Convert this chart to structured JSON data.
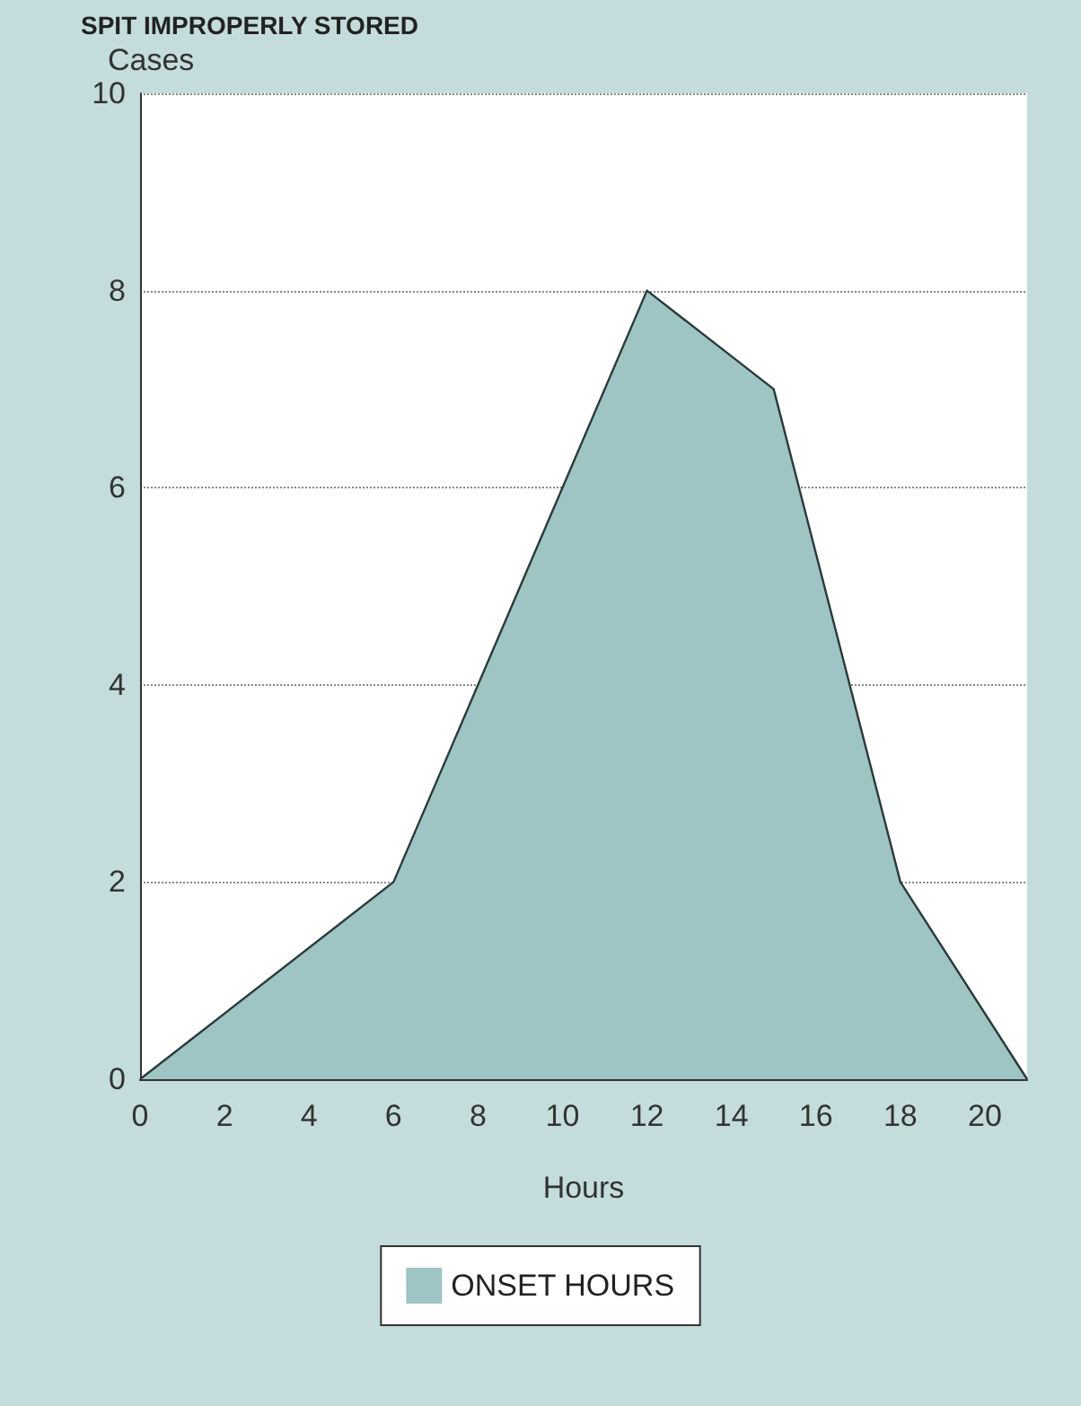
{
  "chart_data": {
    "type": "area",
    "title": "SPIT IMPROPERLY STORED",
    "xlabel": "Hours",
    "ylabel": "Cases",
    "x": [
      0,
      6,
      12,
      15,
      18,
      21
    ],
    "series": [
      {
        "name": "ONSET HOURS",
        "color": "#9fc4c4",
        "values": [
          0,
          2,
          8,
          7,
          2,
          0
        ]
      }
    ],
    "xlim": [
      0,
      21
    ],
    "xticks": [
      0,
      2,
      4,
      6,
      8,
      10,
      12,
      14,
      16,
      18,
      20
    ],
    "ylim": [
      0,
      10
    ],
    "yticks": [
      0,
      2,
      4,
      6,
      8,
      10
    ],
    "grid": "y",
    "legend": "bottom",
    "marker": "none",
    "line_style": "solid"
  }
}
